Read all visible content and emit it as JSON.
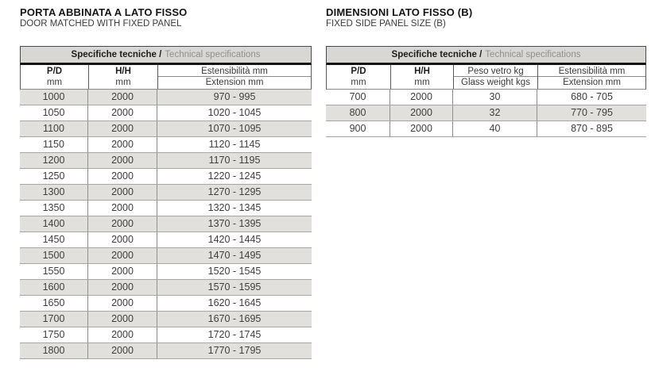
{
  "colors": {
    "bar_bg": "#d8d7d3",
    "stripe_bg": "#e1e0dc",
    "thick_line": "#141414",
    "text": "#3f3f3f"
  },
  "left_table": {
    "title": "PORTA ABBINATA A LATO FISSO",
    "subtitle": "DOOR MATCHED WITH FIXED PANEL",
    "spec_header": {
      "bold": "Specifiche tecniche /",
      "light": "Technical specifications"
    },
    "columns": [
      {
        "line1": "P/D",
        "line2": "mm",
        "split": false
      },
      {
        "line1": "H/H",
        "line2": "mm",
        "split": false
      },
      {
        "line1": "Estensibilità mm",
        "line2": "Extension mm",
        "split": true
      }
    ],
    "rows": [
      [
        "1000",
        "2000",
        "970 - 995"
      ],
      [
        "1050",
        "2000",
        "1020 - 1045"
      ],
      [
        "1100",
        "2000",
        "1070 - 1095"
      ],
      [
        "1150",
        "2000",
        "1120 - 1145"
      ],
      [
        "1200",
        "2000",
        "1170 - 1195"
      ],
      [
        "1250",
        "2000",
        "1220 - 1245"
      ],
      [
        "1300",
        "2000",
        "1270 - 1295"
      ],
      [
        "1350",
        "2000",
        "1320 - 1345"
      ],
      [
        "1400",
        "2000",
        "1370 - 1395"
      ],
      [
        "1450",
        "2000",
        "1420 - 1445"
      ],
      [
        "1500",
        "2000",
        "1470 - 1495"
      ],
      [
        "1550",
        "2000",
        "1520 - 1545"
      ],
      [
        "1600",
        "2000",
        "1570 - 1595"
      ],
      [
        "1650",
        "2000",
        "1620 - 1645"
      ],
      [
        "1700",
        "2000",
        "1670 - 1695"
      ],
      [
        "1750",
        "2000",
        "1720 - 1745"
      ],
      [
        "1800",
        "2000",
        "1770 - 1795"
      ]
    ]
  },
  "right_table": {
    "title": "DIMENSIONI LATO FISSO (B)",
    "subtitle": "FIXED SIDE PANEL SIZE (B)",
    "spec_header": {
      "bold": "Specifiche tecniche /",
      "light": "Technical specifications"
    },
    "columns": [
      {
        "line1": "P/D",
        "line2": "mm",
        "split": false
      },
      {
        "line1": "H/H",
        "line2": "mm",
        "split": false
      },
      {
        "line1": "Peso vetro kg",
        "line2": "Glass weight kgs",
        "split": true
      },
      {
        "line1": "Estensibilità mm",
        "line2": "Extension mm",
        "split": true
      }
    ],
    "rows": [
      [
        "700",
        "2000",
        "30",
        "680 - 705"
      ],
      [
        "800",
        "2000",
        "32",
        "770 - 795"
      ],
      [
        "900",
        "2000",
        "40",
        "870 - 895"
      ]
    ]
  }
}
